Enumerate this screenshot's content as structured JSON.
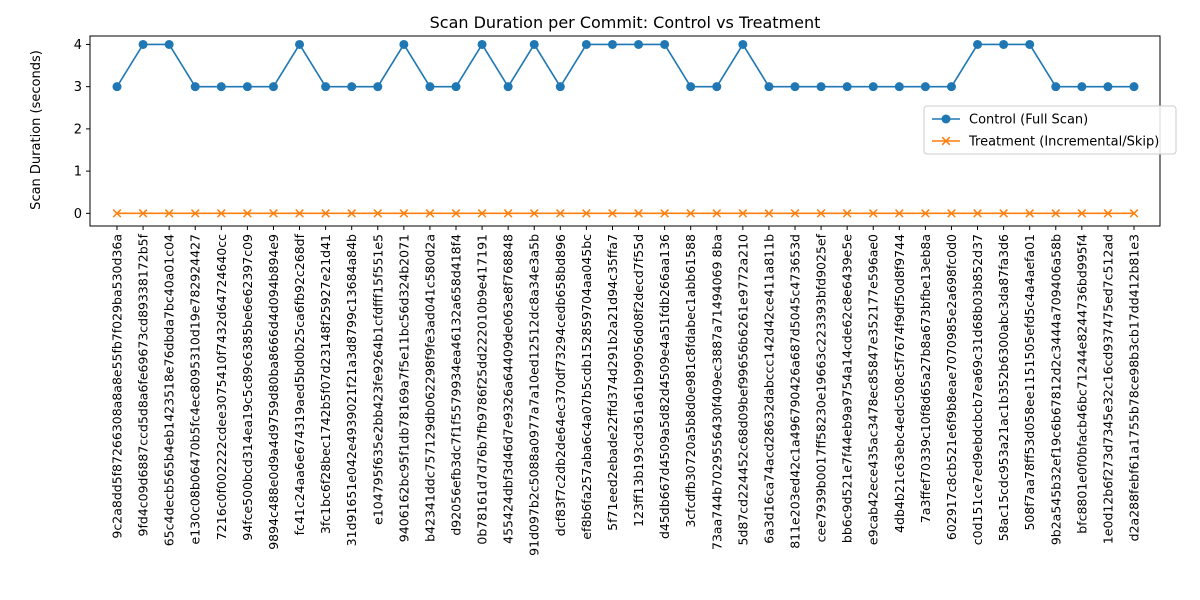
{
  "chart_data": {
    "type": "line",
    "title": "Scan Duration per Commit: Control vs Treatment",
    "xlabel": "",
    "ylabel": "Scan Duration (seconds)",
    "ylim": [
      -0.3,
      4.2
    ],
    "yticks": [
      0,
      1,
      2,
      3,
      4
    ],
    "grid": false,
    "legend_position": "center-right",
    "categories": [
      "9c2a8dd5f87266308a8a8e55fb7f029ba530d36a",
      "9fd4c09d6887ccd5d8a6fe69673cd89338172b5f",
      "65c4decb565b4eb1423518e76dbda7bc40a01c04",
      "e130c08b06470b5fc4ec8095310d19e782924427",
      "7216c0f002222cdee3075410f7432d64724640cc",
      "94fce500bcd314ea19c5c89c6385be6e62397c09",
      "9894c488e0d9a4d9759d80ba8666d4d094b894e9",
      "fc41c24aa6e674319aed5bd0b25ca6fb92c268df",
      "3fc1bc6f28bec1742b5f07d23148f25927e21d41",
      "31d91651e042e4939021f21a3d8799c13684a84b",
      "e104795f635e2bb423fe9264b1cfdfff15f551e5",
      "9406162bc95f1db78169a7f5e11bc56d324b2071",
      "b42341ddc757129db062298f9fe3ad041c580d2a",
      "d92056efb3dc7f1f5579934ea46132a658d418f4",
      "0b78161d7d76b7fb9786f25dd222010b9e417191",
      "455424dbf3d46d7e9326a64409de063e8f768848",
      "91d097b2c5088a0977a7a10ed12512dc8a34e3a5b",
      "dcf83f7c2db2de64ec370df73294cedb658bd896",
      "ef8b6fa257aba6c4a07b5cdb152859704aa045bc",
      "5f71eed2ebade22ffd374d291b2a21d94c35ffa7",
      "123ff13b193cd361a61b99056d08f2decd7f55d",
      "d45db667d4509a5d82d4509e4a51fdb266aa136",
      "3cfcdfb30720a5b8d0e981c8fdabec1abb61588",
      "73aa744b7029556430f409ec3887a71494069 8ba",
      "5d87cd224452c68d09bef99656b6261e9772a210",
      "6a3d16ca74acd28632dabccc142d42ce411a811b",
      "811e203ed42c1a496790426a687d5045c473653d",
      "cee7939b0017ff58230e19663c223393bfd9025ef",
      "bb6c9d521e7f44eb9a9754a14cde62c8e6439e5e",
      "e9cab42ece435ac3478ec85847e352177e596ae0",
      "4db4b21c63ebc4edc508c5f7674f9df50d8f9744",
      "7a3ffef70339c10f8d65a27b8a673bfbe13eb8a",
      "602917c8cb521e6f9b8eae7070985e2a698fc0d0",
      "c0d151ce7ed9ebdcbcb7ea69c31d68b03b852d37",
      "58ac15cdc953a21ac1b352b6300abc3da87fa3d6",
      "508f7aa78ff53d058ee1151505efd5c4a4aefa01",
      "9b2a545b32ef19c6b67812d2c3444a709406a58b",
      "bfc8801e0f0bfacb46bc71244e8244736bd995f4",
      "1e0d12b6f273d7345e32c16cd937475ed7c512ad",
      "d2a288febf61a1755b78ce98b3cb17dd412b81e3"
    ],
    "series": [
      {
        "name": "Control (Full Scan)",
        "color": "#1f77b4",
        "marker": "circle",
        "values": [
          3,
          4,
          4,
          3,
          3,
          3,
          3,
          4,
          3,
          3,
          3,
          4,
          3,
          3,
          4,
          3,
          4,
          3,
          4,
          4,
          4,
          4,
          3,
          3,
          4,
          3,
          3,
          3,
          3,
          3,
          3,
          3,
          3,
          4,
          4,
          4,
          3,
          3,
          3,
          3
        ]
      },
      {
        "name": "Treatment (Incremental/Skip)",
        "color": "#ff7f0e",
        "marker": "x",
        "values": [
          0,
          0,
          0,
          0,
          0,
          0,
          0,
          0,
          0,
          0,
          0,
          0,
          0,
          0,
          0,
          0,
          0,
          0,
          0,
          0,
          0,
          0,
          0,
          0,
          0,
          0,
          0,
          0,
          0,
          0,
          0,
          0,
          0,
          0,
          0,
          0,
          0,
          0,
          0,
          0
        ]
      }
    ]
  }
}
